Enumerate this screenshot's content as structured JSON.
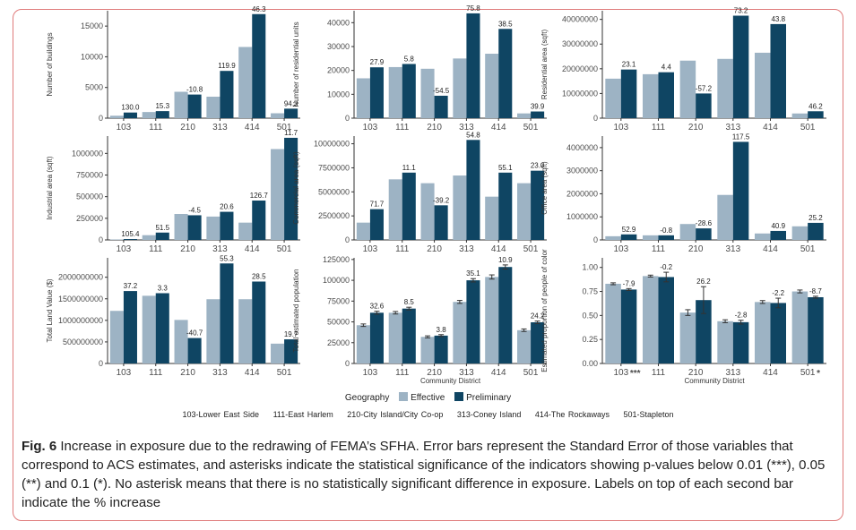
{
  "colors": {
    "effective": "#9db3c4",
    "preliminary": "#0f4563"
  },
  "legend": {
    "title": "Geography",
    "items": [
      "Effective",
      "Preliminary"
    ]
  },
  "districts_key": [
    "103-Lower East Side",
    "111-East Harlem",
    "210-City Island/City Co-op",
    "313-Coney Island",
    "414-The Rockaways",
    "501-Stapleton"
  ],
  "caption": {
    "label": "Fig. 6",
    "text": "Increase in exposure due to the redrawing of FEMA’s SFHA. Error bars represent the Standard Error of those variables that correspond to ACS estimates, and asterisks indicate the statistical significance of the indicators showing p-values below 0.01 (***), 0.05 (**) and 0.1 (*). No asterisk means that there is no statistically significant difference in exposure. Labels on top of each second bar indicate the % increase"
  },
  "chart_data": [
    {
      "type": "bar",
      "ylabel": "Number of buildings",
      "xlabel": "",
      "categories": [
        "103",
        "111",
        "210",
        "313",
        "414",
        "501"
      ],
      "yticks": [
        0,
        5000,
        10000,
        15000
      ],
      "yticklabels": [
        "0",
        "5000",
        "10000",
        "15000"
      ],
      "ylim": [
        0,
        17500
      ],
      "series": [
        {
          "name": "Effective",
          "values": [
            400,
            1000,
            4300,
            3500,
            11600,
            800
          ]
        },
        {
          "name": "Preliminary",
          "values": [
            920,
            1150,
            3850,
            7700,
            16950,
            1550
          ]
        }
      ],
      "labels": [
        "130.0",
        "15.3",
        "-10.8",
        "119.9",
        "46.3",
        "94.3"
      ]
    },
    {
      "type": "bar",
      "ylabel": "Number of residential units",
      "xlabel": "",
      "categories": [
        "103",
        "111",
        "210",
        "313",
        "414",
        "501"
      ],
      "yticks": [
        0,
        10000,
        20000,
        30000,
        40000
      ],
      "yticklabels": [
        "0",
        "10000",
        "20000",
        "30000",
        "40000"
      ],
      "ylim": [
        0,
        45000
      ],
      "series": [
        {
          "name": "Effective",
          "values": [
            16700,
            21400,
            20700,
            25000,
            27000,
            2000
          ]
        },
        {
          "name": "Preliminary",
          "values": [
            21300,
            22700,
            9400,
            43900,
            37400,
            2800
          ]
        }
      ],
      "labels": [
        "27.9",
        "5.8",
        "-54.5",
        "75.8",
        "38.5",
        "39.9"
      ]
    },
    {
      "type": "bar",
      "ylabel": "Residential area (sqft)",
      "xlabel": "",
      "categories": [
        "103",
        "111",
        "210",
        "313",
        "414",
        "501"
      ],
      "yticks": [
        0,
        10000000,
        20000000,
        30000000,
        40000000
      ],
      "yticklabels": [
        "0",
        "10000000",
        "20000000",
        "30000000",
        "40000000"
      ],
      "ylim": [
        0,
        43500000
      ],
      "series": [
        {
          "name": "Effective",
          "values": [
            16000000,
            17800000,
            23300000,
            24000000,
            26500000,
            1900000
          ]
        },
        {
          "name": "Preliminary",
          "values": [
            19700000,
            18600000,
            10000000,
            41500000,
            38100000,
            2800000
          ]
        }
      ],
      "labels": [
        "23.1",
        "4.4",
        "-57.2",
        "73.2",
        "43.8",
        "46.2"
      ]
    },
    {
      "type": "bar",
      "ylabel": "Industrial area (sqft)",
      "xlabel": "",
      "categories": [
        "103",
        "111",
        "210",
        "313",
        "414",
        "501"
      ],
      "yticks": [
        0,
        250000,
        500000,
        750000,
        1000000
      ],
      "yticklabels": [
        "0",
        "250000",
        "500000",
        "750000",
        "1000000"
      ],
      "ylim": [
        0,
        1200000
      ],
      "series": [
        {
          "name": "Effective",
          "values": [
            5000,
            55000,
            300000,
            270000,
            200000,
            1050000
          ]
        },
        {
          "name": "Preliminary",
          "values": [
            10000,
            85000,
            285000,
            325000,
            455000,
            1180000
          ]
        }
      ],
      "labels": [
        "105.4",
        "51.5",
        "-4.5",
        "20.6",
        "126.7",
        "11.7"
      ]
    },
    {
      "type": "bar",
      "ylabel": "Commercial area (sqft)",
      "xlabel": "",
      "categories": [
        "103",
        "111",
        "210",
        "313",
        "414",
        "501"
      ],
      "yticks": [
        0,
        2500000,
        5000000,
        7500000,
        10000000
      ],
      "yticklabels": [
        "0",
        "2500000",
        "5000000",
        "7500000",
        "10000000"
      ],
      "ylim": [
        0,
        10800000
      ],
      "series": [
        {
          "name": "Effective",
          "values": [
            1800000,
            6300000,
            5900000,
            6700000,
            4500000,
            5900000
          ]
        },
        {
          "name": "Preliminary",
          "values": [
            3200000,
            7000000,
            3600000,
            10400000,
            7000000,
            7200000
          ]
        }
      ],
      "labels": [
        "71.7",
        "11.1",
        "-39.2",
        "54.8",
        "55.1",
        "23.0"
      ]
    },
    {
      "type": "bar",
      "ylabel": "Office area (sqft)",
      "xlabel": "",
      "categories": [
        "103",
        "111",
        "210",
        "313",
        "414",
        "501"
      ],
      "yticks": [
        0,
        1000000,
        2000000,
        3000000,
        4000000
      ],
      "yticklabels": [
        "0",
        "1000000",
        "2000000",
        "3000000",
        "4000000"
      ],
      "ylim": [
        0,
        4500000
      ],
      "series": [
        {
          "name": "Effective",
          "values": [
            160000,
            200000,
            690000,
            1950000,
            280000,
            590000
          ]
        },
        {
          "name": "Preliminary",
          "values": [
            240000,
            200000,
            500000,
            4250000,
            390000,
            740000
          ]
        }
      ],
      "labels": [
        "52.9",
        "-0.8",
        "-28.6",
        "117.5",
        "40.9",
        "25.2"
      ]
    },
    {
      "type": "bar",
      "ylabel": "Total Land Value ($)",
      "xlabel": "",
      "categories": [
        "103",
        "111",
        "210",
        "313",
        "414",
        "501"
      ],
      "yticks": [
        0,
        500000000,
        1000000000,
        1500000000,
        2000000000
      ],
      "yticklabels": [
        "0",
        "500000000",
        "1000000000",
        "1500000000",
        "2000000000"
      ],
      "ylim": [
        0,
        2450000000
      ],
      "series": [
        {
          "name": "Effective",
          "values": [
            1220000000,
            1570000000,
            1010000000,
            1490000000,
            1490000000,
            460000000
          ]
        },
        {
          "name": "Preliminary",
          "values": [
            1680000000,
            1630000000,
            590000000,
            2320000000,
            1900000000,
            560000000
          ]
        }
      ],
      "labels": [
        "37.2",
        "3.3",
        "-40.7",
        "55.3",
        "28.5",
        "19.7"
      ]
    },
    {
      "type": "bar",
      "ylabel": "Total estimated population",
      "xlabel": "Community District",
      "categories": [
        "103",
        "111",
        "210",
        "313",
        "414",
        "501"
      ],
      "yticks": [
        0,
        25000,
        50000,
        75000,
        100000,
        125000
      ],
      "yticklabels": [
        "0",
        "25000",
        "50000",
        "75000",
        "100000",
        "125000"
      ],
      "ylim": [
        0,
        127000
      ],
      "series": [
        {
          "name": "Effective",
          "values": [
            46000,
            61000,
            32000,
            74000,
            104000,
            40000
          ]
        },
        {
          "name": "Preliminary",
          "values": [
            61000,
            66000,
            33500,
            100000,
            116000,
            49500
          ]
        }
      ],
      "errors": [
        [
          1500,
          1800
        ],
        [
          1500,
          1600
        ],
        [
          1200,
          1200
        ],
        [
          1800,
          2000
        ],
        [
          2500,
          2500
        ],
        [
          1500,
          1500
        ]
      ],
      "labels": [
        "32.6",
        "8.5",
        "3.8",
        "35.1",
        "10.9",
        "24.2"
      ]
    },
    {
      "type": "bar",
      "ylabel": "Estimated proportion of people of color",
      "xlabel": "Community District",
      "categories": [
        "103",
        "111",
        "210",
        "313",
        "414",
        "501"
      ],
      "category_marks": [
        "***",
        "",
        "",
        "",
        "",
        "*"
      ],
      "yticks": [
        0,
        0.25,
        0.5,
        0.75,
        1.0
      ],
      "yticklabels": [
        "0.00",
        "0.25",
        "0.50",
        "0.75",
        "1.00"
      ],
      "ylim": [
        0,
        1.1
      ],
      "series": [
        {
          "name": "Effective",
          "values": [
            0.83,
            0.91,
            0.53,
            0.44,
            0.64,
            0.75
          ]
        },
        {
          "name": "Preliminary",
          "values": [
            0.77,
            0.9,
            0.66,
            0.43,
            0.63,
            0.69
          ]
        }
      ],
      "errors": [
        [
          0.01,
          0.01
        ],
        [
          0.01,
          0.05
        ],
        [
          0.03,
          0.14
        ],
        [
          0.015,
          0.02
        ],
        [
          0.015,
          0.05
        ],
        [
          0.015,
          0.01
        ]
      ],
      "labels": [
        "-7.9",
        "-0.2",
        "26.2",
        "-2.8",
        "-2.2",
        "-8.7"
      ]
    }
  ]
}
